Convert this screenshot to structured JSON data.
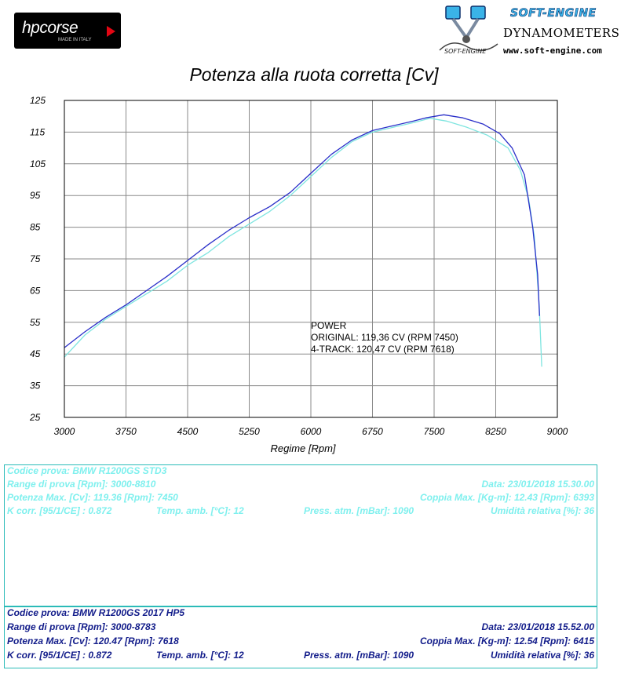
{
  "logos": {
    "hp_text": "hpcorse",
    "hp_sub": "MADE IN ITALY",
    "se_title": "SOFT-ENGINE",
    "se_dyn": "DYNAMOMETERS",
    "se_url": "www.soft-engine.com",
    "se_mark": "SOFT-ENGINE"
  },
  "colors": {
    "original": "#7fe5e0",
    "track4": "#2a2fc9",
    "box_border": "#2bbbb8"
  },
  "chart_data": {
    "type": "line",
    "title": "Potenza alla ruota corretta [Cv]",
    "xlabel": "Regime [Rpm]",
    "ylabel": "",
    "xlim": [
      3000,
      9000
    ],
    "ylim": [
      25,
      125
    ],
    "xticks": [
      3000,
      3750,
      4500,
      5250,
      6000,
      6750,
      7500,
      8250,
      9000
    ],
    "yticks": [
      25,
      35,
      45,
      55,
      65,
      75,
      85,
      95,
      105,
      115,
      125
    ],
    "grid": true,
    "series": [
      {
        "name": "ORIGINAL",
        "color": "#7fe5e0",
        "x": [
          3000,
          3250,
          3500,
          3750,
          4000,
          4250,
          4500,
          4750,
          5000,
          5250,
          5500,
          5750,
          6000,
          6250,
          6500,
          6750,
          7000,
          7250,
          7450,
          7650,
          7900,
          8150,
          8400,
          8550,
          8650,
          8720,
          8780,
          8810
        ],
        "y": [
          44,
          51,
          56,
          60,
          64,
          68,
          73,
          77,
          82,
          86,
          90,
          95,
          101,
          107,
          112,
          115,
          116.5,
          118,
          119.36,
          118.5,
          116.5,
          114,
          110,
          103,
          94,
          82,
          60,
          41
        ]
      },
      {
        "name": "4-TRACK",
        "color": "#2a2fc9",
        "x": [
          3000,
          3250,
          3500,
          3750,
          4000,
          4250,
          4500,
          4750,
          5000,
          5250,
          5500,
          5750,
          6000,
          6250,
          6500,
          6750,
          7000,
          7250,
          7400,
          7618,
          7850,
          8100,
          8300,
          8450,
          8600,
          8700,
          8760,
          8783
        ],
        "y": [
          47,
          52,
          56.5,
          60.5,
          65,
          69.5,
          74.5,
          79.5,
          84,
          88,
          91.5,
          96,
          102,
          108,
          112.5,
          115.5,
          117,
          118.5,
          119.5,
          120.47,
          119.5,
          117.5,
          114.5,
          110,
          101.5,
          85,
          70,
          57
        ]
      }
    ],
    "annotation": {
      "title": "POWER",
      "line1": "ORIGINAL: 119,36 CV (RPM 7450)",
      "line2": "4-TRACK: 120,47 CV (RPM 7618)"
    }
  },
  "test1": {
    "codice": "Codice prova: BMW R1200GS STD3",
    "range": "Range di prova [Rpm]: 3000-8810",
    "data": "Data: 23/01/2018   15.30.00",
    "potenza": "Potenza Max. [Cv]: 119.36   [Rpm]: 7450",
    "coppia": "Coppia Max. [Kg-m]: 12.43   [Rpm]: 6393",
    "kcorr": "K corr. [95/1/CE] : 0.872",
    "temp": "Temp. amb. [°C]: 12",
    "press": "Press. atm. [mBar]: 1090",
    "umid": "Umidità relativa [%]: 36"
  },
  "test2": {
    "codice": "Codice prova: BMW R1200GS 2017 HP5",
    "range": "Range di prova [Rpm]: 3000-8783",
    "data": "Data: 23/01/2018   15.52.00",
    "potenza": "Potenza Max. [Cv]: 120.47   [Rpm]: 7618",
    "coppia": "Coppia Max. [Kg-m]: 12.54   [Rpm]: 6415",
    "kcorr": "K corr. [95/1/CE] : 0.872",
    "temp": "Temp. amb. [°C]: 12",
    "press": "Press. atm. [mBar]: 1090",
    "umid": "Umidità relativa [%]: 36"
  }
}
